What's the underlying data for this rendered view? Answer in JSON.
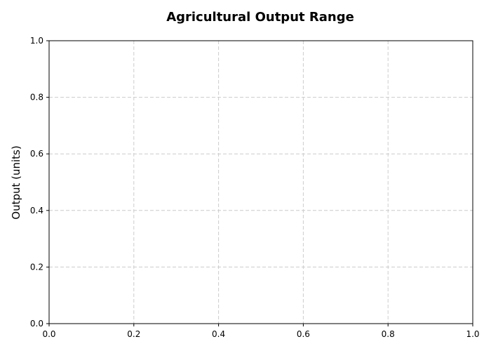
{
  "chart_data": {
    "type": "line",
    "title": "Agricultural Output Range",
    "xlabel": "",
    "ylabel": "Output (units)",
    "xlim": [
      0,
      1
    ],
    "ylim": [
      0,
      1
    ],
    "x_ticks": [
      "0.0",
      "0.2",
      "0.4",
      "0.6",
      "0.8",
      "1.0"
    ],
    "y_ticks": [
      "0.0",
      "0.2",
      "0.4",
      "0.6",
      "0.8",
      "1.0"
    ],
    "grid": true,
    "grid_style": "dashed",
    "series": []
  }
}
